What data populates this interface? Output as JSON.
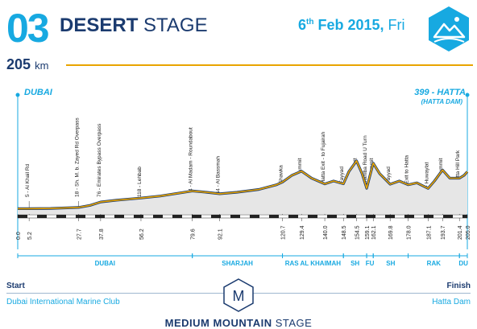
{
  "header": {
    "stage_number": "03",
    "title_bold": "DESERT",
    "title_light": "STAGE",
    "date_day": "6",
    "date_sup": "th",
    "date_rest": "Feb 2015,",
    "date_weekday": "Fri",
    "distance_value": "205",
    "distance_unit": "km"
  },
  "start": {
    "name": "DUBAI"
  },
  "finish": {
    "name": "399 - HATTA",
    "sub": "(HATTA DAM)"
  },
  "profile": {
    "line_color": "#e9a400",
    "dark_color": "#1b3b6f",
    "accent_color": "#17a9e1",
    "total_km": 205.0,
    "km_ticks": [
      "0.0",
      "5.2",
      "27.7",
      "37.8",
      "56.2",
      "79.6",
      "92.1",
      "120.7",
      "129.4",
      "140.0",
      "148.5",
      "154.5",
      "159.1",
      "162.1",
      "169.8",
      "178.0",
      "187.1",
      "193.7",
      "201.4",
      "205.0"
    ],
    "km_values": [
      0.0,
      5.2,
      27.7,
      37.8,
      56.2,
      79.6,
      92.1,
      120.7,
      129.4,
      140.0,
      148.5,
      154.5,
      159.1,
      162.1,
      169.8,
      178.0,
      187.1,
      193.7,
      201.4,
      205.0
    ],
    "landmarks": [
      {
        "km": 5.2,
        "label": "5 - Al Khail Rd"
      },
      {
        "km": 27.7,
        "label": "18 - Sh. M. b. Zayed Rd Overpass"
      },
      {
        "km": 37.8,
        "label": "76 - Emirates Bypass Overpass"
      },
      {
        "km": 56.2,
        "label": "118 - Lehbab"
      },
      {
        "km": 79.6,
        "label": "194 - Al Madam - Roundabout"
      },
      {
        "km": 92.1,
        "label": "164 - Al Bassmah"
      },
      {
        "km": 120.7,
        "label": "288 - Shawka"
      },
      {
        "km": 129.4,
        "label": "405 - Hill summit"
      },
      {
        "km": 140.0,
        "label": "269 - Hatta Exit - to Fujairah"
      },
      {
        "km": 148.5,
        "label": "270 - Fayyad"
      },
      {
        "km": 154.5,
        "label": "515 - Hill summit"
      },
      {
        "km": 159.1,
        "label": "222 - Mahlba Road U Turn"
      },
      {
        "km": 162.1,
        "label": "490 - Hill summit"
      },
      {
        "km": 169.8,
        "label": "266 - Fayyad"
      },
      {
        "km": 178.0,
        "label": "260 - Exit to Hatta"
      },
      {
        "km": 187.1,
        "label": "221 - Huwaylat"
      },
      {
        "km": 193.7,
        "label": "417 - Hill summit"
      },
      {
        "km": 201.4,
        "label": "330 - Hatta Hill Park"
      }
    ],
    "elevation_points": [
      [
        0,
        5
      ],
      [
        5.2,
        5
      ],
      [
        15,
        8
      ],
      [
        27.7,
        18
      ],
      [
        33,
        40
      ],
      [
        37.8,
        76
      ],
      [
        45,
        95
      ],
      [
        56.2,
        118
      ],
      [
        65,
        140
      ],
      [
        79.6,
        194
      ],
      [
        86,
        180
      ],
      [
        92.1,
        164
      ],
      [
        100,
        180
      ],
      [
        110,
        210
      ],
      [
        118,
        260
      ],
      [
        120.7,
        288
      ],
      [
        125,
        360
      ],
      [
        129.4,
        405
      ],
      [
        134,
        330
      ],
      [
        140,
        269
      ],
      [
        144,
        300
      ],
      [
        148.5,
        270
      ],
      [
        151,
        400
      ],
      [
        154.5,
        515
      ],
      [
        157,
        380
      ],
      [
        159.1,
        222
      ],
      [
        160.5,
        350
      ],
      [
        162.1,
        490
      ],
      [
        165,
        380
      ],
      [
        169.8,
        266
      ],
      [
        174,
        300
      ],
      [
        178,
        260
      ],
      [
        182,
        280
      ],
      [
        187.1,
        221
      ],
      [
        190,
        300
      ],
      [
        193.7,
        417
      ],
      [
        197,
        330
      ],
      [
        201.4,
        330
      ],
      [
        203.5,
        360
      ],
      [
        205,
        399
      ]
    ],
    "regions": [
      {
        "label": "DUBAI",
        "from": 0,
        "to": 79.6
      },
      {
        "label": "SHARJAH",
        "from": 79.6,
        "to": 120.7
      },
      {
        "label": "RAS AL KHAIMAH",
        "from": 120.7,
        "to": 148.5
      },
      {
        "label": "SH",
        "from": 148.5,
        "to": 159.1
      },
      {
        "label": "FU",
        "from": 159.1,
        "to": 162.1
      },
      {
        "label": "SH",
        "from": 162.1,
        "to": 178.0
      },
      {
        "label": "RAK",
        "from": 178.0,
        "to": 201.4
      },
      {
        "label": "DU",
        "from": 201.4,
        "to": 205.0
      }
    ]
  },
  "footer": {
    "start_label": "Start",
    "finish_label": "Finish",
    "start_place": "Dubai International Marine Club",
    "finish_place": "Hatta Dam",
    "badge_letter": "M",
    "stage_type_bold": "MEDIUM MOUNTAIN",
    "stage_type_rest": "STAGE"
  }
}
